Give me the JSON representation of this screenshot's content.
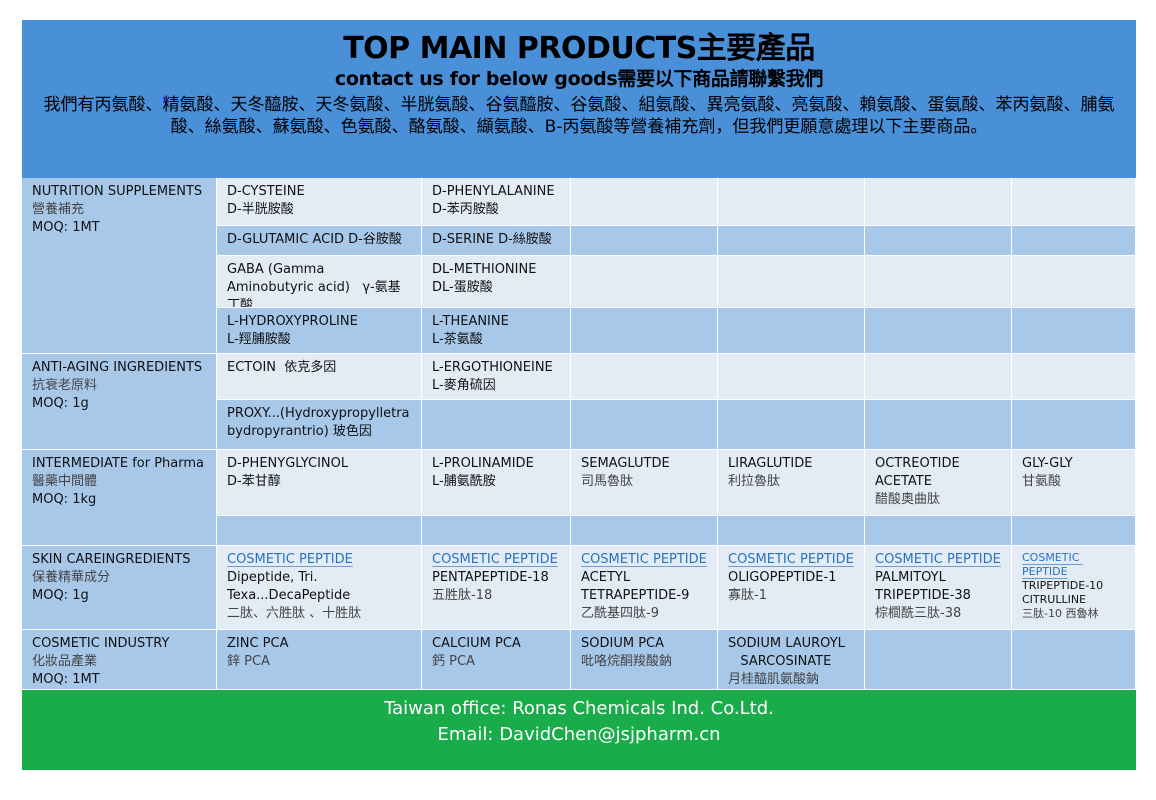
{
  "header": {
    "title": "TOP MAIN PRODUCTS主要產品",
    "subtitle": "contact us for below goods需要以下商品請聯繫我們",
    "intro": "我們有丙氨酸、精氨酸、天冬醯胺、天冬氨酸、半胱氨酸、谷氨醯胺、谷氨酸、組氨酸、異亮氨酸、亮氨酸、賴氨酸、蛋氨酸、苯丙氨酸、脯氨酸、絲氨酸、蘇氨酸、色氨酸、酪氨酸、纈氨酸、B-丙氨酸等營養補充劑，但我們更願意處理以下主要商品。"
  },
  "categories": [
    {
      "lines": [
        "NUTRITION SUPPLEMENTS",
        "營養補充",
        "MOQ: 1MT"
      ],
      "rows": 4
    },
    {
      "lines": [
        "ANTI-AGING INGREDIENTS",
        "抗衰老原料",
        "MOQ: 1g"
      ],
      "rows": 2
    },
    {
      "lines": [
        "INTERMEDIATE  for Pharma",
        "醫藥中間體",
        "MOQ: 1kg"
      ],
      "rows": 2
    },
    {
      "lines": [
        "SKIN CAREINGREDIENTS",
        "保養精華成分",
        "MOQ: 1g"
      ],
      "rows": 1
    },
    {
      "lines": [
        "COSMETIC INDUSTRY",
        "化妝品產業",
        "MOQ: 1MT"
      ],
      "rows": 1
    }
  ],
  "rows": [
    {
      "shade": "light",
      "cells": [
        [
          "D-CYSTEINE",
          "D-半胱胺酸"
        ],
        [
          "D-PHENYLALANINE",
          "D-苯丙胺酸"
        ],
        [],
        [],
        [],
        []
      ]
    },
    {
      "shade": "dark",
      "cells": [
        [
          "D-GLUTAMIC ACID D-谷胺酸"
        ],
        [
          "D-SERINE D-絲胺酸"
        ],
        [],
        [],
        [],
        []
      ]
    },
    {
      "shade": "light",
      "cells": [
        [
          "GABA (Gamma Aminobutyric acid)   γ-氨基丁酸"
        ],
        [
          "DL-METHIONINE",
          "DL-蛋胺酸"
        ],
        [],
        [],
        [],
        []
      ]
    },
    {
      "shade": "dark",
      "cells": [
        [
          "L-HYDROXYPROLINE",
          "L-羥脯胺酸"
        ],
        [
          "L-THEANINE",
          "L-茶氨酸"
        ],
        [],
        [],
        [],
        []
      ]
    },
    {
      "shade": "light",
      "cells": [
        [
          "ECTOIN  依克多因"
        ],
        [
          "L-ERGOTHIONEINE",
          "L-麥角硫因"
        ],
        [],
        [],
        [],
        []
      ]
    },
    {
      "shade": "dark",
      "cells": [
        [
          "PROXY...(Hydroxypropylletra bydropyrantrio) 玻色因"
        ],
        [],
        [],
        [],
        [],
        []
      ]
    },
    {
      "shade": "light",
      "cells": [
        [
          "D-PHENYGLYCINOL",
          "D-苯甘醇"
        ],
        [
          "L-PROLINAMIDE",
          "L-脯氨酰胺"
        ],
        [
          "SEMAGLUTDE",
          "司馬魯肽"
        ],
        [
          "LIRAGLUTIDE",
          "利拉魯肽"
        ],
        [
          "OCTREOTIDE",
          "ACETATE",
          "醋酸奧曲肽"
        ],
        [
          "GLY-GLY",
          "甘氨酸"
        ]
      ]
    },
    {
      "shade": "dark",
      "cells": [
        [],
        [],
        [],
        [],
        [],
        []
      ]
    },
    {
      "shade": "light",
      "cells": [
        [
          "COSMETIC PEPTIDE",
          "Dipeptide, Tri. Texa...DecaPeptide",
          "二肽、六胜肽 、十胜肽"
        ],
        [
          "COSMETIC PEPTIDE",
          "PENTAPEPTIDE-18",
          "五胜肽-18"
        ],
        [
          "COSMETIC PEPTIDE",
          "ACETYL",
          "TETRAPEPTIDE-9",
          "乙酰基四肽-9"
        ],
        [
          "COSMETIC PEPTIDE",
          "OLIGOPEPTIDE-1",
          "寡肽-1"
        ],
        [
          "COSMETIC PEPTIDE",
          "PALMITOYL",
          "TRIPEPTIDE-38",
          "棕櫚酰三肽-38"
        ],
        [
          "COSMETIC PEPTIDE",
          "TRIPEPTIDE-10",
          "CITRULLINE",
          "三肽-10 西魯林"
        ]
      ]
    },
    {
      "shade": "dark",
      "cells": [
        [
          "ZINC PCA",
          "鋅 PCA"
        ],
        [
          "CALCIUM PCA",
          "鈣 PCA"
        ],
        [
          "SODIUM PCA",
          "吡咯烷酮羧酸鈉"
        ],
        [
          "SODIUM LAUROYL",
          "   SARCOSINATE",
          "月桂醯肌氨酸鈉"
        ],
        [],
        []
      ]
    }
  ],
  "footer": {
    "office": "Taiwan office: Ronas Chemicals Ind. Co.Ltd.",
    "email": "Email: DavidChen@jsjpharm.cn"
  },
  "colors": {
    "header": "#4a90d9",
    "light_cell": "#e3ecf5",
    "dark_cell": "#a8c8ea",
    "footer": "#1aab4a",
    "peptide_link": "#2a72c0"
  }
}
